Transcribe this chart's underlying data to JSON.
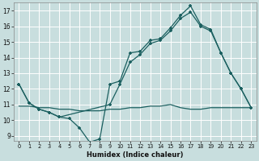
{
  "xlabel": "Humidex (Indice chaleur)",
  "bg_color": "#c8dede",
  "grid_color": "#ffffff",
  "line_color": "#1a5f5f",
  "xlim": [
    -0.5,
    23.5
  ],
  "ylim": [
    8.7,
    17.5
  ],
  "yticks": [
    9,
    10,
    11,
    12,
    13,
    14,
    15,
    16,
    17
  ],
  "xticks": [
    0,
    1,
    2,
    3,
    4,
    5,
    6,
    7,
    8,
    9,
    10,
    11,
    12,
    13,
    14,
    15,
    16,
    17,
    18,
    19,
    20,
    21,
    22,
    23
  ],
  "line1_x": [
    0,
    1,
    2,
    3,
    4,
    5,
    6,
    7,
    8,
    9,
    10,
    11,
    12,
    13,
    14,
    15,
    16,
    17,
    18,
    19,
    20,
    21,
    22,
    23
  ],
  "line1_y": [
    12.3,
    11.1,
    10.7,
    10.5,
    10.2,
    10.1,
    9.5,
    8.6,
    8.8,
    12.3,
    12.5,
    14.3,
    14.4,
    15.1,
    15.2,
    15.9,
    16.7,
    17.3,
    16.1,
    15.8,
    14.3,
    13.0,
    12.0,
    10.8
  ],
  "line2_x": [
    0,
    1,
    2,
    3,
    4,
    9,
    10,
    11,
    12,
    13,
    14,
    15,
    16,
    17,
    18,
    19,
    20,
    21,
    22,
    23
  ],
  "line2_y": [
    12.3,
    11.1,
    10.7,
    10.5,
    10.2,
    11.0,
    12.3,
    13.7,
    14.2,
    14.9,
    15.1,
    15.7,
    16.5,
    16.9,
    16.0,
    15.7,
    14.3,
    13.0,
    12.0,
    10.8
  ],
  "line3_x": [
    0,
    1,
    2,
    3,
    4,
    5,
    6,
    7,
    8,
    9,
    10,
    11,
    12,
    13,
    14,
    15,
    16,
    17,
    18,
    19,
    20,
    21,
    22,
    23
  ],
  "line3_y": [
    10.9,
    10.9,
    10.8,
    10.8,
    10.7,
    10.7,
    10.6,
    10.6,
    10.6,
    10.7,
    10.7,
    10.8,
    10.8,
    10.9,
    10.9,
    11.0,
    10.8,
    10.7,
    10.7,
    10.8,
    10.8,
    10.8,
    10.8,
    10.8
  ]
}
